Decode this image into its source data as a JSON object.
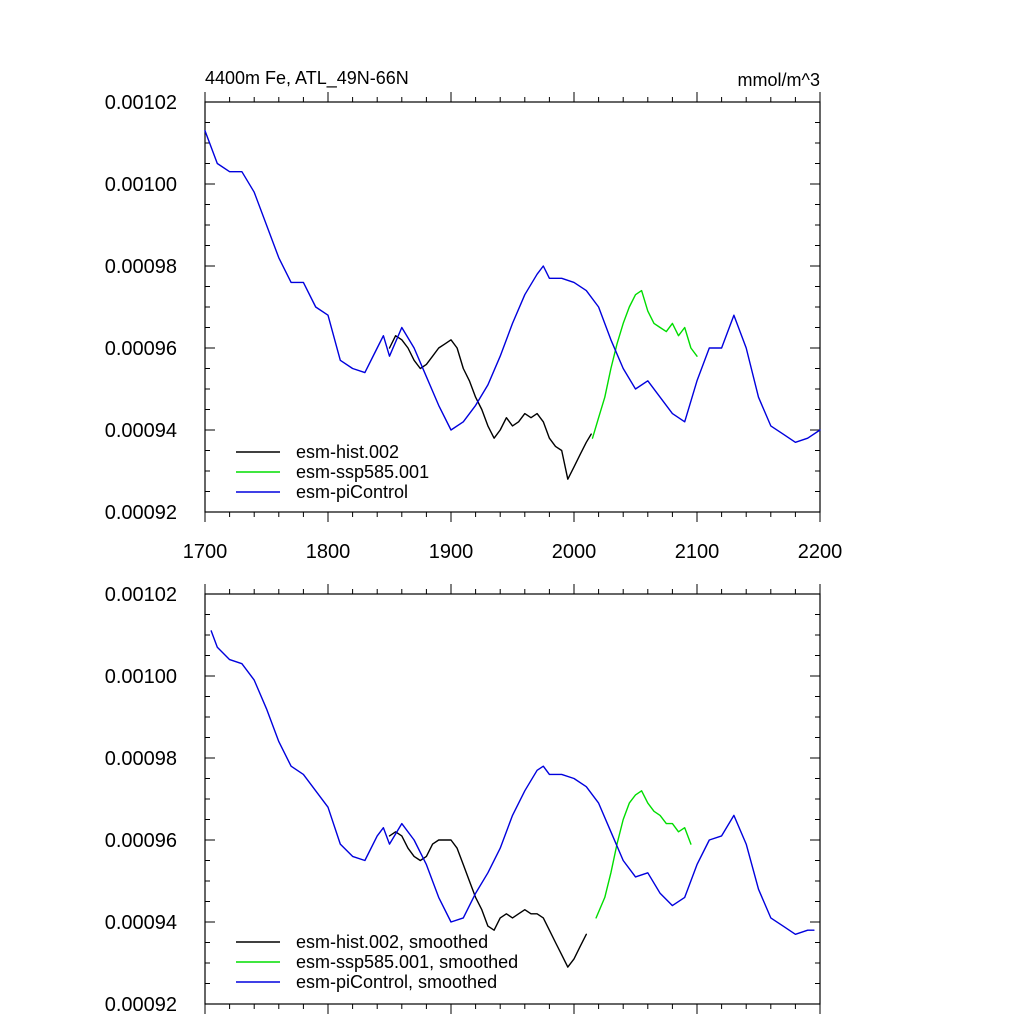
{
  "figure": {
    "title": "4400m Fe, ATL_49N-66N",
    "units": "mmol/m^3"
  },
  "chart_data": [
    {
      "type": "line",
      "title": "4400m Fe, ATL_49N-66N",
      "units": "mmol/m^3",
      "xlim": [
        1700,
        2200
      ],
      "ylim": [
        0.00092,
        0.00102
      ],
      "xticks": [
        "1700",
        "1800",
        "1900",
        "2000",
        "2100",
        "2200"
      ],
      "yticks": [
        "0.00092",
        "0.00094",
        "0.00096",
        "0.00098",
        "0.00100",
        "0.00102"
      ],
      "legend_position": "bottom-left",
      "series": [
        {
          "name": "esm-hist.002",
          "color": "#000000",
          "x": [
            1850,
            1855,
            1860,
            1865,
            1870,
            1875,
            1880,
            1885,
            1890,
            1895,
            1900,
            1905,
            1910,
            1915,
            1920,
            1925,
            1930,
            1935,
            1940,
            1945,
            1950,
            1955,
            1960,
            1965,
            1970,
            1975,
            1980,
            1985,
            1990,
            1995,
            2000,
            2005,
            2010,
            2014
          ],
          "y": [
            0.00096,
            0.000963,
            0.000962,
            0.00096,
            0.000957,
            0.000955,
            0.000956,
            0.000958,
            0.00096,
            0.000961,
            0.000962,
            0.00096,
            0.000955,
            0.000952,
            0.000948,
            0.000945,
            0.000941,
            0.000938,
            0.00094,
            0.000943,
            0.000941,
            0.000942,
            0.000944,
            0.000943,
            0.000944,
            0.000942,
            0.000938,
            0.000936,
            0.000935,
            0.000928,
            0.000931,
            0.000934,
            0.000937,
            0.000939
          ]
        },
        {
          "name": "esm-ssp585.001",
          "color": "#00dd00",
          "x": [
            2015,
            2020,
            2025,
            2030,
            2035,
            2040,
            2045,
            2050,
            2055,
            2060,
            2065,
            2070,
            2075,
            2080,
            2085,
            2090,
            2095,
            2100
          ],
          "y": [
            0.000938,
            0.000943,
            0.000948,
            0.000955,
            0.000961,
            0.000966,
            0.00097,
            0.000973,
            0.000974,
            0.000969,
            0.000966,
            0.000965,
            0.000964,
            0.000966,
            0.000963,
            0.000965,
            0.00096,
            0.000958
          ]
        },
        {
          "name": "esm-piControl",
          "color": "#0000dd",
          "x": [
            1700,
            1710,
            1720,
            1730,
            1740,
            1750,
            1760,
            1770,
            1780,
            1790,
            1800,
            1810,
            1820,
            1830,
            1840,
            1845,
            1850,
            1860,
            1870,
            1880,
            1890,
            1900,
            1910,
            1920,
            1930,
            1940,
            1950,
            1960,
            1970,
            1975,
            1980,
            1990,
            2000,
            2010,
            2020,
            2030,
            2040,
            2050,
            2060,
            2070,
            2080,
            2090,
            2100,
            2110,
            2120,
            2130,
            2140,
            2150,
            2160,
            2170,
            2180,
            2190,
            2200
          ],
          "y": [
            0.001013,
            0.001005,
            0.001003,
            0.001003,
            0.000998,
            0.00099,
            0.000982,
            0.000976,
            0.000976,
            0.00097,
            0.000968,
            0.000957,
            0.000955,
            0.000954,
            0.00096,
            0.000963,
            0.000958,
            0.000965,
            0.00096,
            0.000953,
            0.000946,
            0.00094,
            0.000942,
            0.000946,
            0.000951,
            0.000958,
            0.000966,
            0.000973,
            0.000978,
            0.00098,
            0.000977,
            0.000977,
            0.000976,
            0.000974,
            0.00097,
            0.000962,
            0.000955,
            0.00095,
            0.000952,
            0.000948,
            0.000944,
            0.000942,
            0.000952,
            0.00096,
            0.00096,
            0.000968,
            0.00096,
            0.000948,
            0.000941,
            0.000939,
            0.000937,
            0.000938,
            0.00094
          ]
        }
      ]
    },
    {
      "type": "line",
      "title": "",
      "xlim": [
        1700,
        2200
      ],
      "ylim": [
        0.00092,
        0.00102
      ],
      "xticks": [],
      "yticks": [
        "0.00092",
        "0.00094",
        "0.00096",
        "0.00098",
        "0.00100",
        "0.00102"
      ],
      "legend_position": "bottom-left",
      "series": [
        {
          "name": "esm-hist.002, smoothed",
          "color": "#000000",
          "x": [
            1850,
            1855,
            1860,
            1865,
            1870,
            1875,
            1880,
            1885,
            1890,
            1895,
            1900,
            1905,
            1910,
            1915,
            1920,
            1925,
            1930,
            1935,
            1940,
            1945,
            1950,
            1955,
            1960,
            1965,
            1970,
            1975,
            1980,
            1985,
            1990,
            1995,
            2000,
            2005,
            2010
          ],
          "y": [
            0.000961,
            0.000962,
            0.000961,
            0.000958,
            0.000956,
            0.000955,
            0.000956,
            0.000959,
            0.00096,
            0.00096,
            0.00096,
            0.000958,
            0.000954,
            0.00095,
            0.000946,
            0.000943,
            0.000939,
            0.000938,
            0.000941,
            0.000942,
            0.000941,
            0.000942,
            0.000943,
            0.000942,
            0.000942,
            0.000941,
            0.000938,
            0.000935,
            0.000932,
            0.000929,
            0.000931,
            0.000934,
            0.000937
          ]
        },
        {
          "name": "esm-ssp585.001, smoothed",
          "color": "#00dd00",
          "x": [
            2018,
            2025,
            2030,
            2035,
            2040,
            2045,
            2050,
            2055,
            2060,
            2065,
            2070,
            2075,
            2080,
            2085,
            2090,
            2095
          ],
          "y": [
            0.000941,
            0.000946,
            0.000952,
            0.000959,
            0.000965,
            0.000969,
            0.000971,
            0.000972,
            0.000969,
            0.000967,
            0.000966,
            0.000964,
            0.000964,
            0.000962,
            0.000963,
            0.000959
          ]
        },
        {
          "name": "esm-piControl, smoothed",
          "color": "#0000dd",
          "x": [
            1705,
            1710,
            1720,
            1730,
            1740,
            1750,
            1760,
            1770,
            1780,
            1790,
            1800,
            1810,
            1820,
            1830,
            1840,
            1845,
            1850,
            1860,
            1870,
            1880,
            1890,
            1900,
            1910,
            1920,
            1930,
            1940,
            1950,
            1960,
            1970,
            1975,
            1980,
            1990,
            2000,
            2010,
            2020,
            2030,
            2040,
            2050,
            2060,
            2070,
            2080,
            2090,
            2100,
            2110,
            2120,
            2130,
            2140,
            2150,
            2160,
            2170,
            2180,
            2190,
            2195
          ],
          "y": [
            0.001011,
            0.001007,
            0.001004,
            0.001003,
            0.000999,
            0.000992,
            0.000984,
            0.000978,
            0.000976,
            0.000972,
            0.000968,
            0.000959,
            0.000956,
            0.000955,
            0.000961,
            0.000963,
            0.000959,
            0.000964,
            0.00096,
            0.000954,
            0.000946,
            0.00094,
            0.000941,
            0.000947,
            0.000952,
            0.000958,
            0.000966,
            0.000972,
            0.000977,
            0.000978,
            0.000976,
            0.000976,
            0.000975,
            0.000973,
            0.000969,
            0.000962,
            0.000955,
            0.000951,
            0.000952,
            0.000947,
            0.000944,
            0.000946,
            0.000954,
            0.00096,
            0.000961,
            0.000966,
            0.000959,
            0.000948,
            0.000941,
            0.000939,
            0.000937,
            0.000938,
            0.000938
          ]
        }
      ]
    }
  ]
}
